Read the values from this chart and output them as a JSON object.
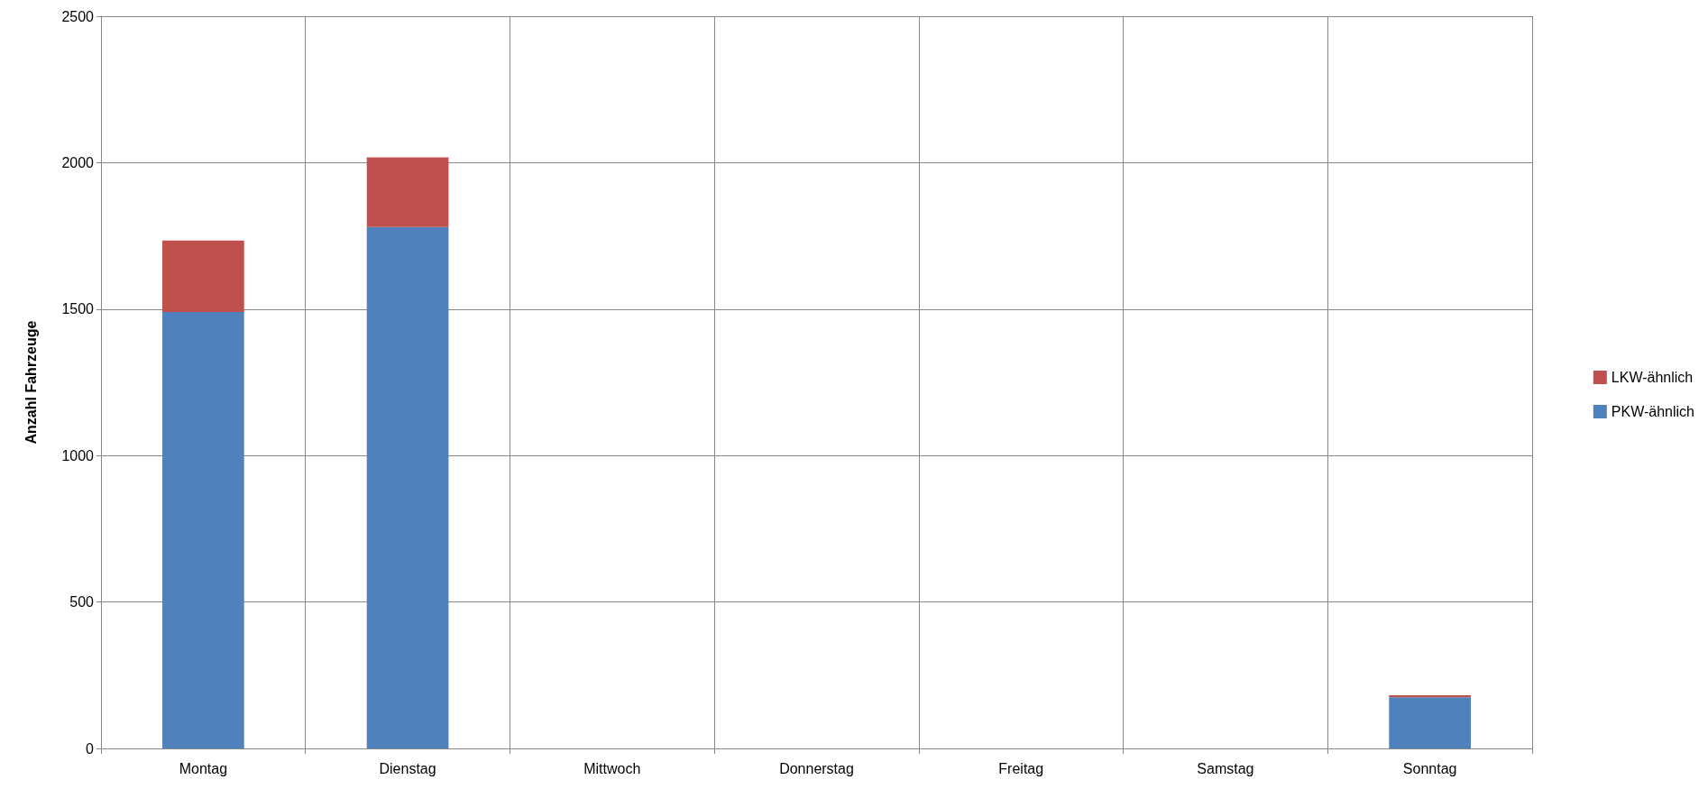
{
  "chart_data": {
    "type": "bar",
    "stacked": true,
    "ylabel": "Anzahl Fahrzeuge",
    "categories": [
      "Montag",
      "Dienstag",
      "Mittwoch",
      "Donnerstag",
      "Freitag",
      "Samstag",
      "Sonntag"
    ],
    "series": [
      {
        "name": "PKW-ähnlich",
        "color": "#4f81bd",
        "values": [
          1490,
          1780,
          0,
          0,
          0,
          0,
          175
        ]
      },
      {
        "name": "LKW-ähnlich",
        "color": "#c0504d",
        "values": [
          244,
          238,
          0,
          0,
          0,
          0,
          7
        ]
      }
    ],
    "ylim": [
      0,
      2500
    ],
    "yticks": [
      0,
      500,
      1000,
      1500,
      2000,
      2500
    ],
    "grid": true,
    "legend": "right"
  }
}
